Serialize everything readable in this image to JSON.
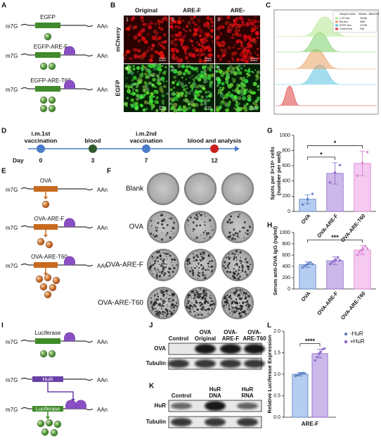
{
  "panels": {
    "letters": [
      "A",
      "B",
      "C",
      "D",
      "E",
      "F",
      "G",
      "H",
      "I",
      "J",
      "K",
      "L"
    ],
    "A": {
      "cap": "m7G",
      "tail": "AAn",
      "constructs": [
        "EGFP",
        "EGFP-ARE-F",
        "EGFP-ARE-T60"
      ]
    },
    "B": {
      "columns": [
        "Original",
        "ARE-F",
        "ARE-"
      ],
      "rows": [
        "mCherry",
        "EGFP"
      ],
      "image_numbers": [
        "1",
        "2",
        "3",
        "4",
        "5",
        "6"
      ],
      "scale_bar": "50 μm"
    },
    "C": {
      "legend_header": [
        "Sample Name",
        "Median : BB515-H"
      ],
      "legend_rows": [
        [
          "L-ST Ara",
          "28168"
        ],
        [
          "BA-Ara",
          "9867"
        ],
        [
          "EGFP-Ara",
          "12798"
        ],
        [
          "Control Ara",
          "236"
        ]
      ]
    },
    "D": {
      "axis_label": "Day",
      "events": [
        {
          "label": [
            "i.m.1st",
            "vaccination"
          ],
          "day": "0"
        },
        {
          "label": [
            "blood"
          ],
          "day": "3"
        },
        {
          "label": [
            "i.m.2nd",
            "vaccination"
          ],
          "day": "7"
        },
        {
          "label": [
            "blood and analysis"
          ],
          "day": "12"
        }
      ]
    },
    "E": {
      "cap": "m7G",
      "tail": "AAn",
      "constructs": [
        "OVA",
        "OVA-ARE-F",
        "OVA-ARE-T60"
      ]
    },
    "F": {
      "rows": [
        "Blank",
        "OVA",
        "OVA-ARE-F",
        "OVA-ARE-T60"
      ]
    },
    "I": {
      "cap": "m7G",
      "tail": "AAn",
      "constructs": [
        "Luciferase",
        "HuR",
        "Luciferase"
      ]
    },
    "J": {
      "columns": [
        [
          "Control"
        ],
        [
          "OVA",
          "Original"
        ],
        [
          "OVA-",
          "ARE-F"
        ],
        [
          "OVA-",
          "ARE-T60"
        ]
      ],
      "rows": [
        "OVA",
        "Tubulin"
      ]
    },
    "K": {
      "columns": [
        [
          "Control"
        ],
        [
          "HuR",
          "DNA"
        ],
        [
          "HuR",
          "RNA"
        ]
      ],
      "rows": [
        "HuR",
        "Tubulin"
      ]
    }
  },
  "chart_data": [
    {
      "type": "bar",
      "ylabel": [
        "Spots per 3×10⁵ cells",
        "(number per well)"
      ],
      "categories": [
        "OVA",
        "OVA-ARE-F",
        "OVA-ARE-T60"
      ],
      "values": [
        160,
        500,
        630
      ],
      "errors": [
        60,
        140,
        160
      ],
      "points": [
        [
          90,
          160,
          230
        ],
        [
          380,
          510,
          610
        ],
        [
          470,
          640,
          780
        ]
      ],
      "colors": [
        "#b4cdf0",
        "#cdb8ea",
        "#f5c9f0"
      ],
      "edge_colors": [
        "#5b7fc4",
        "#8a64c8",
        "#d67bd0"
      ],
      "ylim": [
        0,
        1000
      ],
      "yticks": [
        0,
        200,
        400,
        600,
        800,
        1000
      ],
      "significance": [
        {
          "label": "*",
          "between": [
            "OVA",
            "OVA-ARE-F"
          ]
        },
        {
          "label": "*",
          "between": [
            "OVA",
            "OVA-ARE-T60"
          ]
        }
      ]
    },
    {
      "type": "bar",
      "ylabel": [
        "Serum anti-OVA IgG (ng/ml)"
      ],
      "categories": [
        "OVA",
        "OVA-ARE-F",
        "OVA-ARE-T60"
      ],
      "values": [
        430,
        500,
        690
      ],
      "errors": [
        50,
        70,
        80
      ],
      "points": [
        [
          380,
          410,
          430,
          450,
          470,
          440
        ],
        [
          440,
          470,
          500,
          520,
          560,
          510
        ],
        [
          600,
          650,
          690,
          720,
          760,
          720
        ]
      ],
      "colors": [
        "#b4cdf0",
        "#cdb8ea",
        "#f5c9f0"
      ],
      "edge_colors": [
        "#5b7fc4",
        "#8a64c8",
        "#d67bd0"
      ],
      "ylim": [
        0,
        1000
      ],
      "yticks": [
        0,
        200,
        400,
        600,
        800,
        1000
      ],
      "significance": [
        {
          "label": "***",
          "between": [
            "OVA",
            "OVA-ARE-T60"
          ]
        }
      ]
    },
    {
      "type": "bar",
      "ylabel": [
        "Relative Luciferase Expression"
      ],
      "categories": [
        "ARE-F"
      ],
      "series": [
        {
          "name": "-HuR",
          "color": "#b4cdf0",
          "edge_color": "#5b7fc4",
          "values": [
            1.0
          ],
          "errors": [
            0.04
          ],
          "points": [
            [
              0.96,
              0.98,
              1.0,
              1.01,
              1.03,
              1.02
            ]
          ]
        },
        {
          "name": "+HuR",
          "color": "#cdb8ea",
          "edge_color": "#8a64c8",
          "values": [
            1.48
          ],
          "errors": [
            0.1
          ],
          "points": [
            [
              1.32,
              1.4,
              1.48,
              1.52,
              1.58,
              1.6
            ]
          ]
        }
      ],
      "ylim": [
        0,
        2
      ],
      "yticks": [
        {
          "value": 0,
          "label": "0.0"
        },
        0.5,
        {
          "value": 1,
          "label": "1.0"
        },
        1.5,
        {
          "value": 2,
          "label": "2.0"
        }
      ],
      "legend": "upper right",
      "significance": [
        {
          "label": "****",
          "between": [
            "-HuR",
            "+HuR"
          ]
        }
      ]
    }
  ]
}
